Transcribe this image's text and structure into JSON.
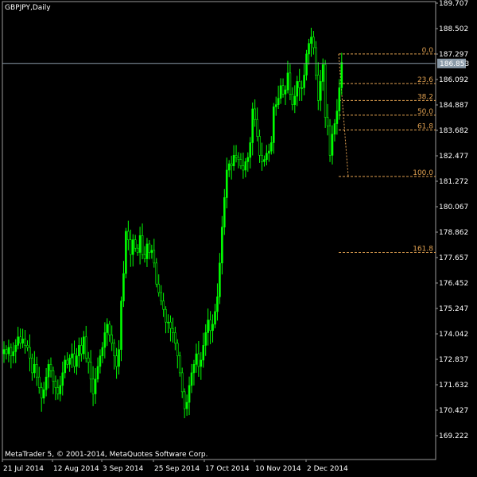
{
  "chart_data": {
    "type": "candlestick",
    "symbol": "GBPJPY,Daily",
    "footer": "MetaTrader 5, © 2001-2014, MetaQuotes Software Corp.",
    "ylim": [
      168.6,
      189.707
    ],
    "y_ticks": [
      "189.707",
      "188.502",
      "187.297",
      "186.092",
      "184.887",
      "183.682",
      "182.477",
      "181.272",
      "180.067",
      "178.862",
      "177.657",
      "176.452",
      "175.247",
      "174.042",
      "172.837",
      "171.632",
      "170.427",
      "169.222"
    ],
    "x_ticks": [
      "21 Jul 2014",
      "12 Aug 2014",
      "3 Sep 2014",
      "25 Sep 2014",
      "17 Oct 2014",
      "10 Nov 2014",
      "2 Dec 2014"
    ],
    "current_price": "186.853",
    "current_price_value": 186.853,
    "fibonacci": {
      "levels": [
        {
          "label": "0.0",
          "price": 187.3
        },
        {
          "label": "23.6",
          "price": 185.9
        },
        {
          "label": "38.2",
          "price": 185.1
        },
        {
          "label": "50.0",
          "price": 184.4
        },
        {
          "label": "61.8",
          "price": 183.7
        },
        {
          "label": "100.0",
          "price": 181.5
        },
        {
          "label": "161.8",
          "price": 177.9
        }
      ]
    },
    "closes": [
      173.3,
      173.1,
      173.4,
      173.0,
      173.2,
      173.5,
      173.9,
      173.6,
      173.8,
      173.5,
      173.4,
      172.9,
      172.2,
      172.6,
      172.0,
      171.5,
      171.0,
      171.4,
      172.0,
      172.6,
      172.3,
      171.8,
      171.5,
      171.2,
      171.6,
      172.2,
      172.8,
      172.6,
      172.9,
      173.1,
      172.5,
      173.0,
      173.5,
      173.1,
      173.9,
      172.9,
      172.7,
      171.9,
      171.2,
      171.9,
      172.5,
      173.0,
      173.4,
      174.1,
      174.5,
      174.0,
      173.6,
      173.0,
      172.5,
      173.3,
      175.6,
      176.9,
      178.9,
      178.5,
      177.8,
      178.5,
      178.1,
      177.9,
      178.7,
      177.8,
      177.6,
      178.3,
      177.9,
      178.0,
      177.4,
      176.4,
      176.0,
      175.6,
      175.2,
      174.6,
      174.6,
      174.3,
      174.1,
      173.6,
      173.0,
      172.2,
      171.3,
      170.5,
      170.8,
      171.6,
      172.2,
      172.6,
      173.1,
      172.5,
      172.8,
      173.5,
      174.1,
      174.7,
      174.2,
      174.5,
      175.1,
      175.8,
      177.4,
      179.1,
      180.5,
      181.8,
      182.1,
      182.0,
      182.5,
      182.4,
      182.3,
      182.0,
      181.8,
      182.2,
      182.4,
      183.1,
      184.7,
      184.2,
      183.4,
      182.5,
      182.2,
      182.3,
      182.6,
      182.7,
      183.1,
      184.8,
      184.9,
      185.2,
      185.8,
      185.4,
      185.6,
      186.4,
      185.4,
      184.9,
      185.3,
      186.0,
      185.7,
      185.7,
      186.3,
      187.3,
      187.8,
      188.1,
      187.6,
      186.3,
      185.1,
      186.0,
      186.8,
      184.3,
      183.9,
      182.5,
      183.5,
      184.0,
      184.6,
      185.7,
      186.9
    ]
  }
}
